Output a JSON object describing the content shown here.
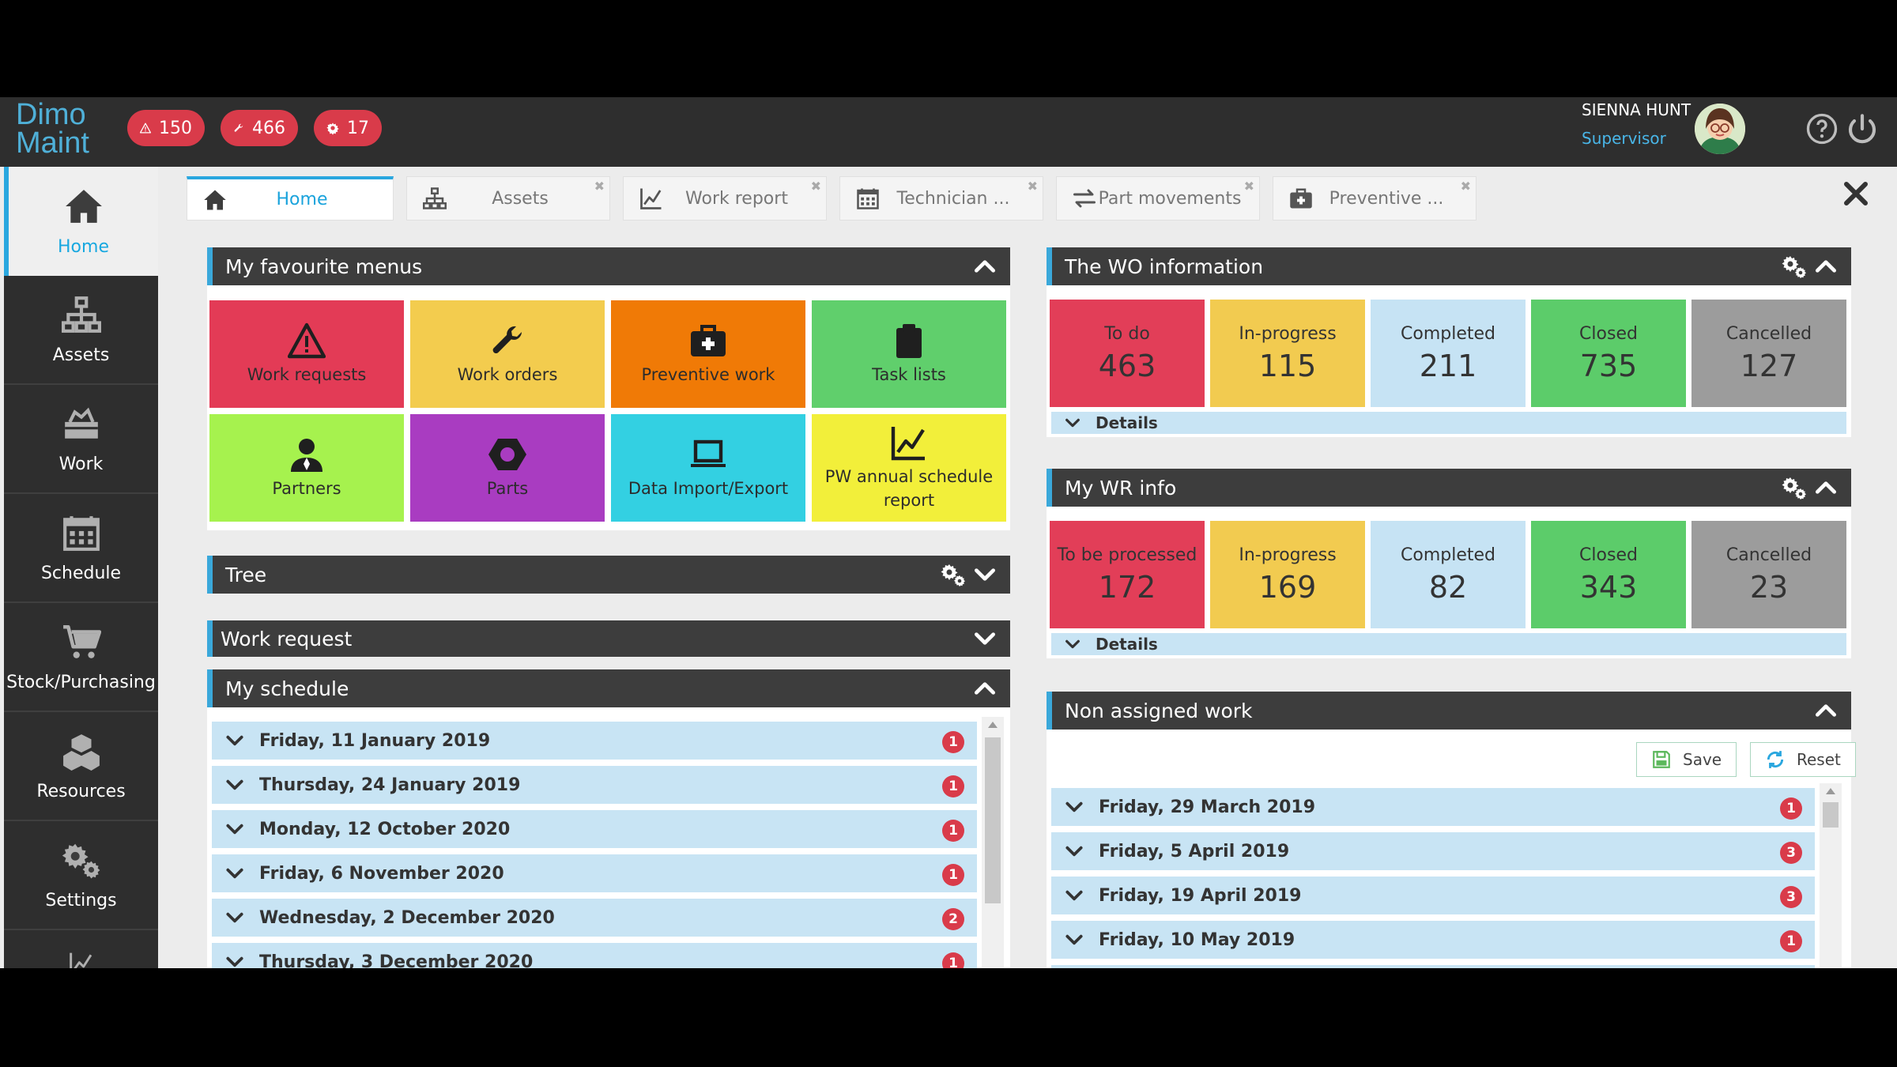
{
  "app": {
    "logo_line1": "Dimo",
    "logo_line2": "Maint"
  },
  "topbar": {
    "alerts": [
      {
        "icon": "warning-icon",
        "count": "150"
      },
      {
        "icon": "wrench-icon",
        "count": "466"
      },
      {
        "icon": "gear-icon",
        "count": "17"
      }
    ],
    "user_name": "SIENNA HUNT",
    "user_role": "Supervisor"
  },
  "sidebar": {
    "items": [
      {
        "label": "Home",
        "icon": "home-icon"
      },
      {
        "label": "Assets",
        "icon": "hierarchy-icon"
      },
      {
        "label": "Work",
        "icon": "toolbox-icon"
      },
      {
        "label": "Schedule",
        "icon": "calendar-icon"
      },
      {
        "label": "Stock/Purchasing",
        "icon": "cart-icon"
      },
      {
        "label": "Resources",
        "icon": "cubes-icon"
      },
      {
        "label": "Settings",
        "icon": "gears-icon"
      }
    ]
  },
  "tabs": [
    {
      "label": "Home",
      "icon": "home-icon"
    },
    {
      "label": "Assets",
      "icon": "hierarchy-icon"
    },
    {
      "label": "Work report",
      "icon": "chart-line-icon"
    },
    {
      "label": "Technician ...",
      "icon": "calendar-icon"
    },
    {
      "label": "Part movements",
      "icon": "exchange-icon"
    },
    {
      "label": "Preventive ...",
      "icon": "medkit-icon"
    }
  ],
  "favourites": {
    "title": "My favourite menus",
    "tiles": [
      {
        "label": "Work requests",
        "icon": "warning-icon",
        "color": "#e33b56"
      },
      {
        "label": "Work orders",
        "icon": "wrench-icon",
        "color": "#f3cc4e"
      },
      {
        "label": "Preventive work",
        "icon": "medkit-icon",
        "color": "#f07a06"
      },
      {
        "label": "Task lists",
        "icon": "clipboard-icon",
        "color": "#60cf6c"
      },
      {
        "label": "Partners",
        "icon": "user-tie-icon",
        "color": "#a6f24e"
      },
      {
        "label": "Parts",
        "icon": "nut-icon",
        "color": "#a93cc1"
      },
      {
        "label": "Data Import/Export",
        "icon": "laptop-icon",
        "color": "#33d0e2"
      },
      {
        "label": "PW annual schedule report",
        "icon": "chart-line-icon",
        "color": "#f2ef3a"
      }
    ]
  },
  "tree": {
    "title": "Tree"
  },
  "work_request": {
    "title": "Work request"
  },
  "schedule": {
    "title": "My schedule",
    "rows": [
      {
        "date": "Friday, 11 January 2019",
        "count": "1"
      },
      {
        "date": "Thursday, 24 January 2019",
        "count": "1"
      },
      {
        "date": "Monday, 12 October 2020",
        "count": "1"
      },
      {
        "date": "Friday, 6 November 2020",
        "count": "1"
      },
      {
        "date": "Wednesday, 2 December 2020",
        "count": "2"
      },
      {
        "date": "Thursday, 3 December 2020",
        "count": "1"
      }
    ]
  },
  "wo_info": {
    "title": "The WO information",
    "stats": [
      {
        "label": "To do",
        "value": "463",
        "color": "#e23e58"
      },
      {
        "label": "In-progress",
        "value": "115",
        "color": "#f2cb50"
      },
      {
        "label": "Completed",
        "value": "211",
        "color": "#c6e3f4"
      },
      {
        "label": "Closed",
        "value": "735",
        "color": "#5ccc6a"
      },
      {
        "label": "Cancelled",
        "value": "127",
        "color": "#9c9c9c"
      }
    ],
    "details": "Details"
  },
  "wr_info": {
    "title": "My WR info",
    "stats": [
      {
        "label": "To be processed",
        "value": "172",
        "color": "#e23e58"
      },
      {
        "label": "In-progress",
        "value": "169",
        "color": "#f2cb50"
      },
      {
        "label": "Completed",
        "value": "82",
        "color": "#c6e3f4"
      },
      {
        "label": "Closed",
        "value": "343",
        "color": "#5ccc6a"
      },
      {
        "label": "Cancelled",
        "value": "23",
        "color": "#9c9c9c"
      }
    ],
    "details": "Details"
  },
  "non_assigned": {
    "title": "Non assigned work",
    "save_label": "Save",
    "reset_label": "Reset",
    "rows": [
      {
        "date": "Friday, 29 March 2019",
        "count": "1"
      },
      {
        "date": "Friday, 5 April 2019",
        "count": "3"
      },
      {
        "date": "Friday, 19 April 2019",
        "count": "3"
      },
      {
        "date": "Friday, 10 May 2019",
        "count": "1"
      }
    ]
  }
}
